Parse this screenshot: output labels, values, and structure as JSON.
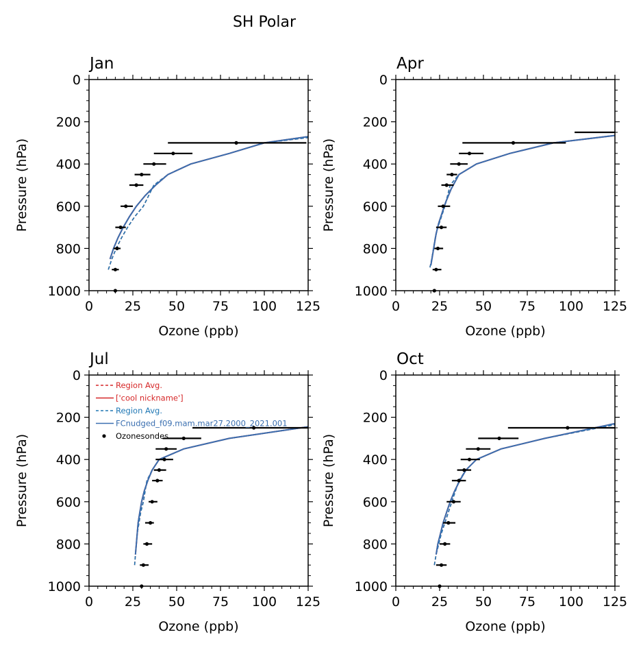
{
  "figure_title": "SH Polar",
  "colors": {
    "region_red": "#d62728",
    "model_red": "#d62728",
    "region_blue": "#1f77b4",
    "model_blue": "#3a6fb0",
    "sondes": "#000000"
  },
  "chart_data": [
    {
      "type": "line",
      "title": "Jan",
      "xlabel": "Ozone (ppb)",
      "ylabel": "Pressure (hPa)",
      "xlim": [
        0,
        125
      ],
      "ylim": [
        1000,
        0
      ],
      "xticks": [
        0,
        25,
        50,
        75,
        100,
        125
      ],
      "yticks": [
        0,
        200,
        400,
        600,
        800,
        1000
      ],
      "series": [
        {
          "name": "Region Avg.",
          "style": "dashed",
          "color": "red",
          "x": [
            11,
            13,
            15.5,
            18.5,
            22,
            26,
            31,
            37,
            45,
            58,
            80,
            100,
            125
          ],
          "y": [
            900,
            850,
            800,
            750,
            700,
            650,
            600,
            500,
            450,
            400,
            350,
            300,
            275
          ]
        },
        {
          "name": "['cool nickname']",
          "style": "solid",
          "color": "red",
          "x": [
            12,
            14,
            16.5,
            19.5,
            23,
            27,
            32,
            38,
            45,
            58,
            80,
            100,
            125
          ],
          "y": [
            850,
            800,
            750,
            700,
            650,
            600,
            550,
            500,
            450,
            400,
            350,
            300,
            270
          ]
        },
        {
          "name": "Region Avg.",
          "style": "dashed",
          "color": "blue",
          "x": [
            11,
            13,
            15.5,
            18.5,
            22,
            26,
            31,
            37,
            45,
            58,
            80,
            100,
            125
          ],
          "y": [
            900,
            850,
            800,
            750,
            700,
            650,
            600,
            500,
            450,
            400,
            350,
            300,
            275
          ]
        },
        {
          "name": "FCnudged_f09.mam.mar27.2000_2021.001",
          "style": "solid",
          "color": "blue",
          "x": [
            12,
            14,
            16.5,
            19.5,
            23,
            27,
            32,
            38,
            45,
            58,
            80,
            100,
            125
          ],
          "y": [
            850,
            800,
            750,
            700,
            650,
            600,
            550,
            500,
            450,
            400,
            350,
            300,
            270
          ]
        }
      ],
      "sondes": [
        {
          "p": 1000,
          "x": 15,
          "lo": 15,
          "hi": 15
        },
        {
          "p": 900,
          "x": 15,
          "lo": 13,
          "hi": 17
        },
        {
          "p": 800,
          "x": 16,
          "lo": 14,
          "hi": 18
        },
        {
          "p": 700,
          "x": 18,
          "lo": 15,
          "hi": 21
        },
        {
          "p": 600,
          "x": 21,
          "lo": 18,
          "hi": 25
        },
        {
          "p": 500,
          "x": 27,
          "lo": 23,
          "hi": 31
        },
        {
          "p": 450,
          "x": 30,
          "lo": 26,
          "hi": 35
        },
        {
          "p": 400,
          "x": 37,
          "lo": 31,
          "hi": 44
        },
        {
          "p": 350,
          "x": 48,
          "lo": 37,
          "hi": 59
        },
        {
          "p": 300,
          "x": 84,
          "lo": 45,
          "hi": 124
        }
      ]
    },
    {
      "type": "line",
      "title": "Apr",
      "xlabel": "Ozone (ppb)",
      "ylabel": "Pressure (hPa)",
      "xlim": [
        0,
        125
      ],
      "ylim": [
        1000,
        0
      ],
      "xticks": [
        0,
        25,
        50,
        75,
        100,
        125
      ],
      "yticks": [
        0,
        200,
        400,
        600,
        800,
        1000
      ],
      "series": [
        {
          "name": "Region Avg.",
          "style": "dashed",
          "color": "red",
          "x": [
            19.5,
            20.5,
            21.5,
            22.5,
            24,
            26,
            28,
            31,
            36,
            46,
            65,
            90,
            125
          ],
          "y": [
            890,
            850,
            800,
            750,
            700,
            650,
            600,
            500,
            450,
            400,
            350,
            300,
            265
          ]
        },
        {
          "name": "['cool nickname']",
          "style": "solid",
          "color": "red",
          "x": [
            20,
            21,
            22,
            23,
            24.5,
            26.5,
            28.5,
            31.5,
            36,
            46,
            65,
            90,
            125
          ],
          "y": [
            880,
            830,
            780,
            730,
            680,
            630,
            580,
            520,
            450,
            400,
            350,
            300,
            265
          ]
        },
        {
          "name": "Region Avg.",
          "style": "dashed",
          "color": "blue",
          "x": [
            19.5,
            20.5,
            21.5,
            22.5,
            24,
            26,
            28,
            31,
            36,
            46,
            65,
            90,
            125
          ],
          "y": [
            890,
            850,
            800,
            750,
            700,
            650,
            600,
            500,
            450,
            400,
            350,
            300,
            265
          ]
        },
        {
          "name": "FCnudged_f09.mam.mar27.2000_2021.001",
          "style": "solid",
          "color": "blue",
          "x": [
            20,
            21,
            22,
            23,
            24.5,
            26.5,
            28.5,
            31.5,
            36,
            46,
            65,
            90,
            125
          ],
          "y": [
            880,
            830,
            780,
            730,
            680,
            630,
            580,
            520,
            450,
            400,
            350,
            300,
            265
          ]
        }
      ],
      "sondes": [
        {
          "p": 1000,
          "x": 22,
          "lo": 22,
          "hi": 22
        },
        {
          "p": 900,
          "x": 23,
          "lo": 21,
          "hi": 26
        },
        {
          "p": 800,
          "x": 24,
          "lo": 22,
          "hi": 27
        },
        {
          "p": 700,
          "x": 26,
          "lo": 23,
          "hi": 29
        },
        {
          "p": 600,
          "x": 27,
          "lo": 24,
          "hi": 31
        },
        {
          "p": 500,
          "x": 29,
          "lo": 26,
          "hi": 33
        },
        {
          "p": 450,
          "x": 32,
          "lo": 29,
          "hi": 35
        },
        {
          "p": 400,
          "x": 36,
          "lo": 31,
          "hi": 41
        },
        {
          "p": 350,
          "x": 42,
          "lo": 36,
          "hi": 50
        },
        {
          "p": 300,
          "x": 67,
          "lo": 38,
          "hi": 97
        },
        {
          "p": 250,
          "x": 125,
          "lo": 102,
          "hi": 125
        }
      ]
    },
    {
      "type": "line",
      "title": "Jul",
      "xlabel": "Ozone (ppb)",
      "ylabel": "Pressure (hPa)",
      "xlim": [
        0,
        125
      ],
      "ylim": [
        1000,
        0
      ],
      "xticks": [
        0,
        25,
        50,
        75,
        100,
        125
      ],
      "yticks": [
        0,
        200,
        400,
        600,
        800,
        1000
      ],
      "series": [
        {
          "name": "Region Avg.",
          "style": "dashed",
          "color": "red",
          "x": [
            26,
            26.5,
            27,
            27.5,
            28.5,
            29.5,
            31,
            33,
            36,
            40,
            54,
            80,
            125
          ],
          "y": [
            900,
            850,
            800,
            750,
            700,
            650,
            600,
            500,
            450,
            400,
            350,
            300,
            245
          ]
        },
        {
          "name": "['cool nickname']",
          "style": "solid",
          "color": "red",
          "x": [
            26.5,
            27,
            27.5,
            28,
            29,
            30,
            31.5,
            33.5,
            36,
            40,
            54,
            80,
            125
          ],
          "y": [
            850,
            800,
            750,
            700,
            650,
            600,
            550,
            500,
            450,
            400,
            350,
            300,
            245
          ]
        },
        {
          "name": "Region Avg.",
          "style": "dashed",
          "color": "blue",
          "x": [
            26,
            26.5,
            27,
            27.5,
            28.5,
            29.5,
            31,
            33,
            36,
            40,
            54,
            80,
            125
          ],
          "y": [
            900,
            850,
            800,
            750,
            700,
            650,
            600,
            500,
            450,
            400,
            350,
            300,
            245
          ]
        },
        {
          "name": "FCnudged_f09.mam.mar27.2000_2021.001",
          "style": "solid",
          "color": "blue",
          "x": [
            26.5,
            27,
            27.5,
            28,
            29,
            30,
            31.5,
            33.5,
            36,
            40,
            54,
            80,
            125
          ],
          "y": [
            850,
            800,
            750,
            700,
            650,
            600,
            550,
            500,
            450,
            400,
            350,
            300,
            245
          ]
        }
      ],
      "sondes": [
        {
          "p": 1000,
          "x": 30,
          "lo": 30,
          "hi": 30
        },
        {
          "p": 900,
          "x": 31,
          "lo": 29,
          "hi": 34
        },
        {
          "p": 800,
          "x": 33,
          "lo": 31,
          "hi": 36
        },
        {
          "p": 700,
          "x": 35,
          "lo": 32,
          "hi": 37
        },
        {
          "p": 600,
          "x": 36,
          "lo": 34,
          "hi": 39
        },
        {
          "p": 500,
          "x": 39,
          "lo": 36,
          "hi": 42
        },
        {
          "p": 450,
          "x": 40,
          "lo": 37,
          "hi": 44
        },
        {
          "p": 400,
          "x": 43,
          "lo": 38,
          "hi": 48
        },
        {
          "p": 350,
          "x": 44,
          "lo": 38,
          "hi": 50
        },
        {
          "p": 300,
          "x": 54,
          "lo": 42,
          "hi": 64
        },
        {
          "p": 250,
          "x": 94,
          "lo": 59,
          "hi": 125
        }
      ]
    },
    {
      "type": "line",
      "title": "Oct",
      "xlabel": "Ozone (ppb)",
      "ylabel": "Pressure (hPa)",
      "xlim": [
        0,
        125
      ],
      "ylim": [
        1000,
        0
      ],
      "xticks": [
        0,
        25,
        50,
        75,
        100,
        125
      ],
      "yticks": [
        0,
        200,
        400,
        600,
        800,
        1000
      ],
      "series": [
        {
          "name": "Region Avg.",
          "style": "dashed",
          "color": "red",
          "x": [
            22,
            23,
            24.5,
            26,
            28,
            30,
            32,
            36,
            40,
            46,
            60,
            85,
            125
          ],
          "y": [
            900,
            850,
            800,
            750,
            700,
            650,
            600,
            500,
            450,
            400,
            350,
            300,
            235
          ]
        },
        {
          "name": "['cool nickname']",
          "style": "solid",
          "color": "red",
          "x": [
            23,
            24,
            25.5,
            27,
            29,
            31,
            33.5,
            36.5,
            40,
            46,
            60,
            85,
            125
          ],
          "y": [
            850,
            800,
            750,
            700,
            650,
            600,
            550,
            500,
            450,
            400,
            350,
            300,
            230
          ]
        },
        {
          "name": "Region Avg.",
          "style": "dashed",
          "color": "blue",
          "x": [
            22,
            23,
            24.5,
            26,
            28,
            30,
            32,
            36,
            40,
            46,
            60,
            85,
            125
          ],
          "y": [
            900,
            850,
            800,
            750,
            700,
            650,
            600,
            500,
            450,
            400,
            350,
            300,
            235
          ]
        },
        {
          "name": "FCnudged_f09.mam.mar27.2000_2021.001",
          "style": "solid",
          "color": "blue",
          "x": [
            23,
            24,
            25.5,
            27,
            29,
            31,
            33.5,
            36.5,
            40,
            46,
            60,
            85,
            125
          ],
          "y": [
            850,
            800,
            750,
            700,
            650,
            600,
            550,
            500,
            450,
            400,
            350,
            300,
            230
          ]
        }
      ],
      "sondes": [
        {
          "p": 1000,
          "x": 25,
          "lo": 25,
          "hi": 25
        },
        {
          "p": 900,
          "x": 26,
          "lo": 23,
          "hi": 29
        },
        {
          "p": 800,
          "x": 28,
          "lo": 25,
          "hi": 31
        },
        {
          "p": 700,
          "x": 30,
          "lo": 27,
          "hi": 34
        },
        {
          "p": 600,
          "x": 33,
          "lo": 29,
          "hi": 37
        },
        {
          "p": 500,
          "x": 36,
          "lo": 32,
          "hi": 40
        },
        {
          "p": 450,
          "x": 39,
          "lo": 35,
          "hi": 43
        },
        {
          "p": 400,
          "x": 42,
          "lo": 37,
          "hi": 48
        },
        {
          "p": 350,
          "x": 47,
          "lo": 40,
          "hi": 54
        },
        {
          "p": 300,
          "x": 59,
          "lo": 47,
          "hi": 70
        },
        {
          "p": 250,
          "x": 98,
          "lo": 64,
          "hi": 125
        }
      ]
    }
  ],
  "legend": {
    "panel": "Jul",
    "location": "upper-left",
    "entries": [
      {
        "label": "Region Avg.",
        "style": "dashed",
        "color": "red"
      },
      {
        "label": "['cool nickname']",
        "style": "solid",
        "color": "red"
      },
      {
        "label": "Region Avg.",
        "style": "dashed",
        "color": "blue"
      },
      {
        "label": "FCnudged_f09.mam.mar27.2000_2021.001",
        "style": "solid",
        "color": "blue"
      },
      {
        "label": "Ozonesondes",
        "style": "marker",
        "color": "black"
      }
    ]
  }
}
